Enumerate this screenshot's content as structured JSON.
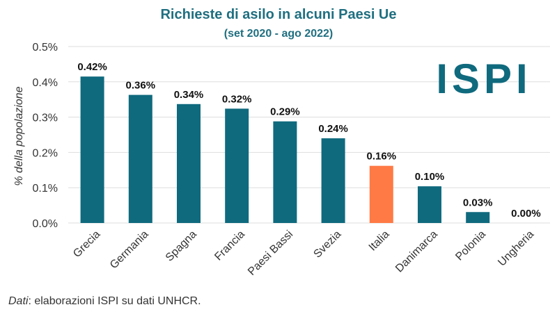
{
  "chart_data": {
    "type": "bar",
    "title": "Richieste di asilo in alcuni Paesi Ue",
    "subtitle": "(set 2020 - ago 2022)",
    "ylabel": "% della popolazione",
    "xlabel": "",
    "ylim": [
      0,
      0.5
    ],
    "yticks": [
      "0.0%",
      "0.1%",
      "0.2%",
      "0.3%",
      "0.4%",
      "0.5%"
    ],
    "categories": [
      "Grecia",
      "Germania",
      "Spagna",
      "Francia",
      "Paesi Bassi",
      "Svezia",
      "Italia",
      "Danimarca",
      "Polonia",
      "Ungheria"
    ],
    "values": [
      0.415,
      0.363,
      0.337,
      0.324,
      0.288,
      0.24,
      0.162,
      0.104,
      0.031,
      0.0
    ],
    "data_labels": [
      "0.42%",
      "0.36%",
      "0.34%",
      "0.32%",
      "0.29%",
      "0.24%",
      "0.16%",
      "0.10%",
      "0.03%",
      "0.00%"
    ],
    "grid": "horizontal",
    "colors": {
      "default": "#0f6a7e",
      "highlight": "#ff7a45"
    },
    "highlight_category": "Italia"
  },
  "logo": {
    "text": "ISPI",
    "color": "#0f6a7e"
  },
  "source": {
    "label": "Dati",
    "text": ": elaborazioni ISPI su dati UNHCR."
  }
}
